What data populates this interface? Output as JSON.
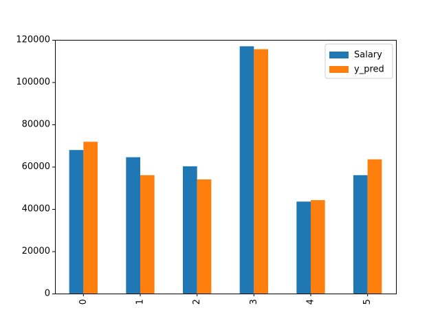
{
  "chart_data": {
    "type": "bar",
    "title": "",
    "xlabel": "",
    "ylabel": "",
    "categories": [
      "0",
      "1",
      "2",
      "3",
      "4",
      "5"
    ],
    "series": [
      {
        "name": "Salary",
        "color": "#1f77b4",
        "values": [
          67900,
          64500,
          60200,
          116970,
          43500,
          56000
        ]
      },
      {
        "name": "y_pred",
        "color": "#ff7f0e",
        "values": [
          71800,
          56000,
          54000,
          115600,
          44200,
          63500
        ]
      }
    ],
    "ylim": [
      0,
      120000
    ],
    "yticks": [
      0,
      20000,
      40000,
      60000,
      80000,
      100000,
      120000
    ],
    "ytick_labels": [
      "0",
      "20000",
      "40000",
      "60000",
      "80000",
      "100000",
      "120000"
    ],
    "xtick_rotation": 90,
    "legend_position": "top-right",
    "grid": false
  }
}
